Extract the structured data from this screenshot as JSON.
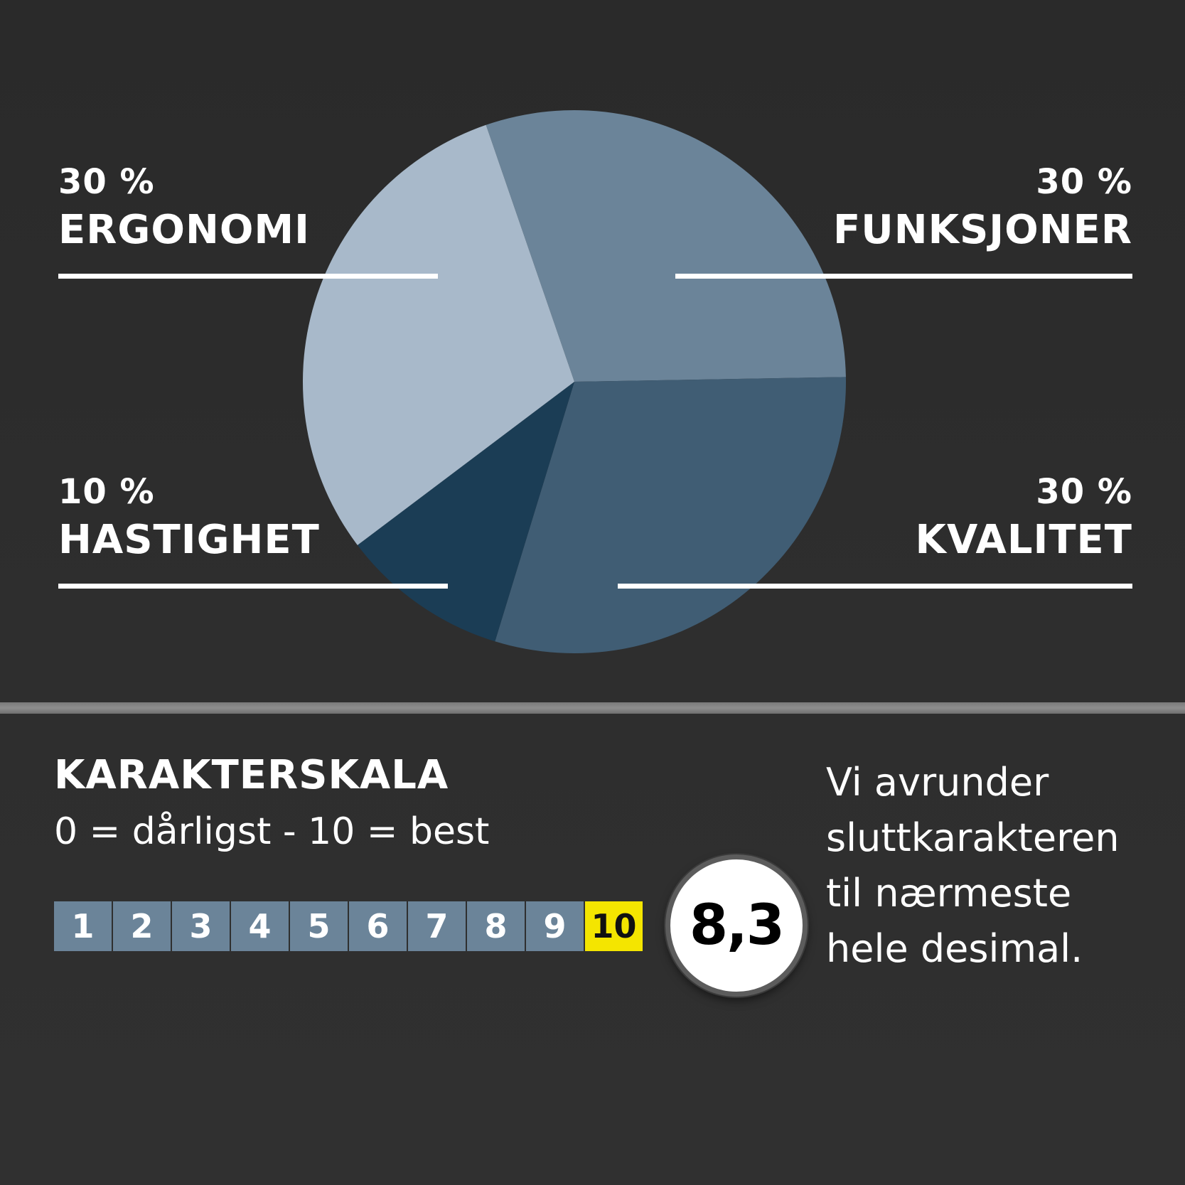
{
  "chart_data": {
    "type": "pie",
    "slices": [
      {
        "label": "FUNKSJONER",
        "percent_label": "30 %",
        "value": 30,
        "color": "#6b8499"
      },
      {
        "label": "KVALITET",
        "percent_label": "30 %",
        "value": 30,
        "color": "#405d74"
      },
      {
        "label": "HASTIGHET",
        "percent_label": "10 %",
        "value": 10,
        "color": "#1b3d55"
      },
      {
        "label": "ERGONOMI",
        "percent_label": "30 %",
        "value": 30,
        "color": "#a8b9ca"
      }
    ]
  },
  "scale": {
    "title": "KARAKTERSKALA",
    "subtitle": "0 = dårligst - 10 = best",
    "steps": [
      "1",
      "2",
      "3",
      "4",
      "5",
      "6",
      "7",
      "8",
      "9",
      "10"
    ],
    "highlighted": "10",
    "highlight_color": "#f4e500",
    "score": "8,3"
  },
  "note": {
    "lines": [
      "Vi avrunder",
      "sluttkarakteren",
      "til nærmeste",
      "hele desimal."
    ]
  }
}
